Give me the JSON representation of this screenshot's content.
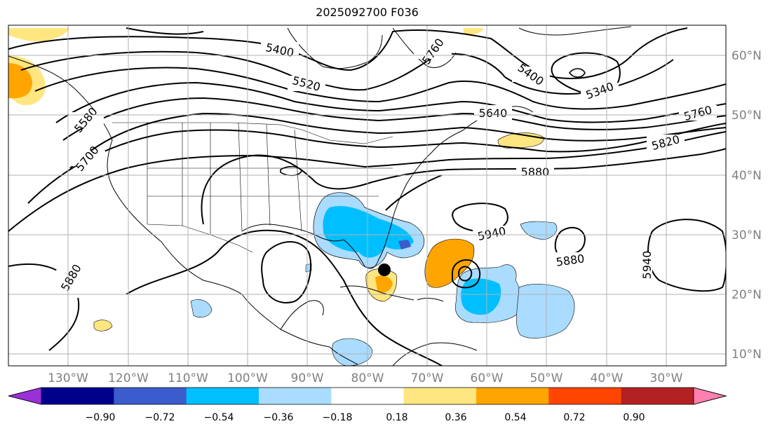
{
  "title": "2025092700 F036",
  "map": {
    "lat_labels": [
      "60°N",
      "50°N",
      "40°N",
      "30°N",
      "20°N",
      "10°N"
    ],
    "lon_labels": [
      "130°W",
      "120°W",
      "110°W",
      "100°W",
      "90°W",
      "80°W",
      "70°W",
      "60°W",
      "50°W",
      "40°W",
      "30°W"
    ],
    "contour_labels": [
      "5400",
      "5520",
      "5580",
      "5700",
      "5640",
      "5760",
      "5400",
      "5340",
      "5760",
      "5820",
      "5880",
      "5940",
      "5880",
      "5880",
      "5940"
    ]
  },
  "colorbar": {
    "ticks": [
      "−0.90",
      "−0.72",
      "−0.54",
      "−0.36",
      "−0.18",
      "0.18",
      "0.36",
      "0.54",
      "0.72",
      "0.90"
    ],
    "colors": [
      "#9b30d9",
      "#00008b",
      "#3a5ccc",
      "#00bfff",
      "#aadcff",
      "#ffffff",
      "#ffe680",
      "#ffa500",
      "#ff4500",
      "#b22222",
      "#ff80b0"
    ]
  },
  "colors": {
    "contour": "#000000",
    "grid": "#b0b0b0",
    "storm_marker": "#000000"
  }
}
